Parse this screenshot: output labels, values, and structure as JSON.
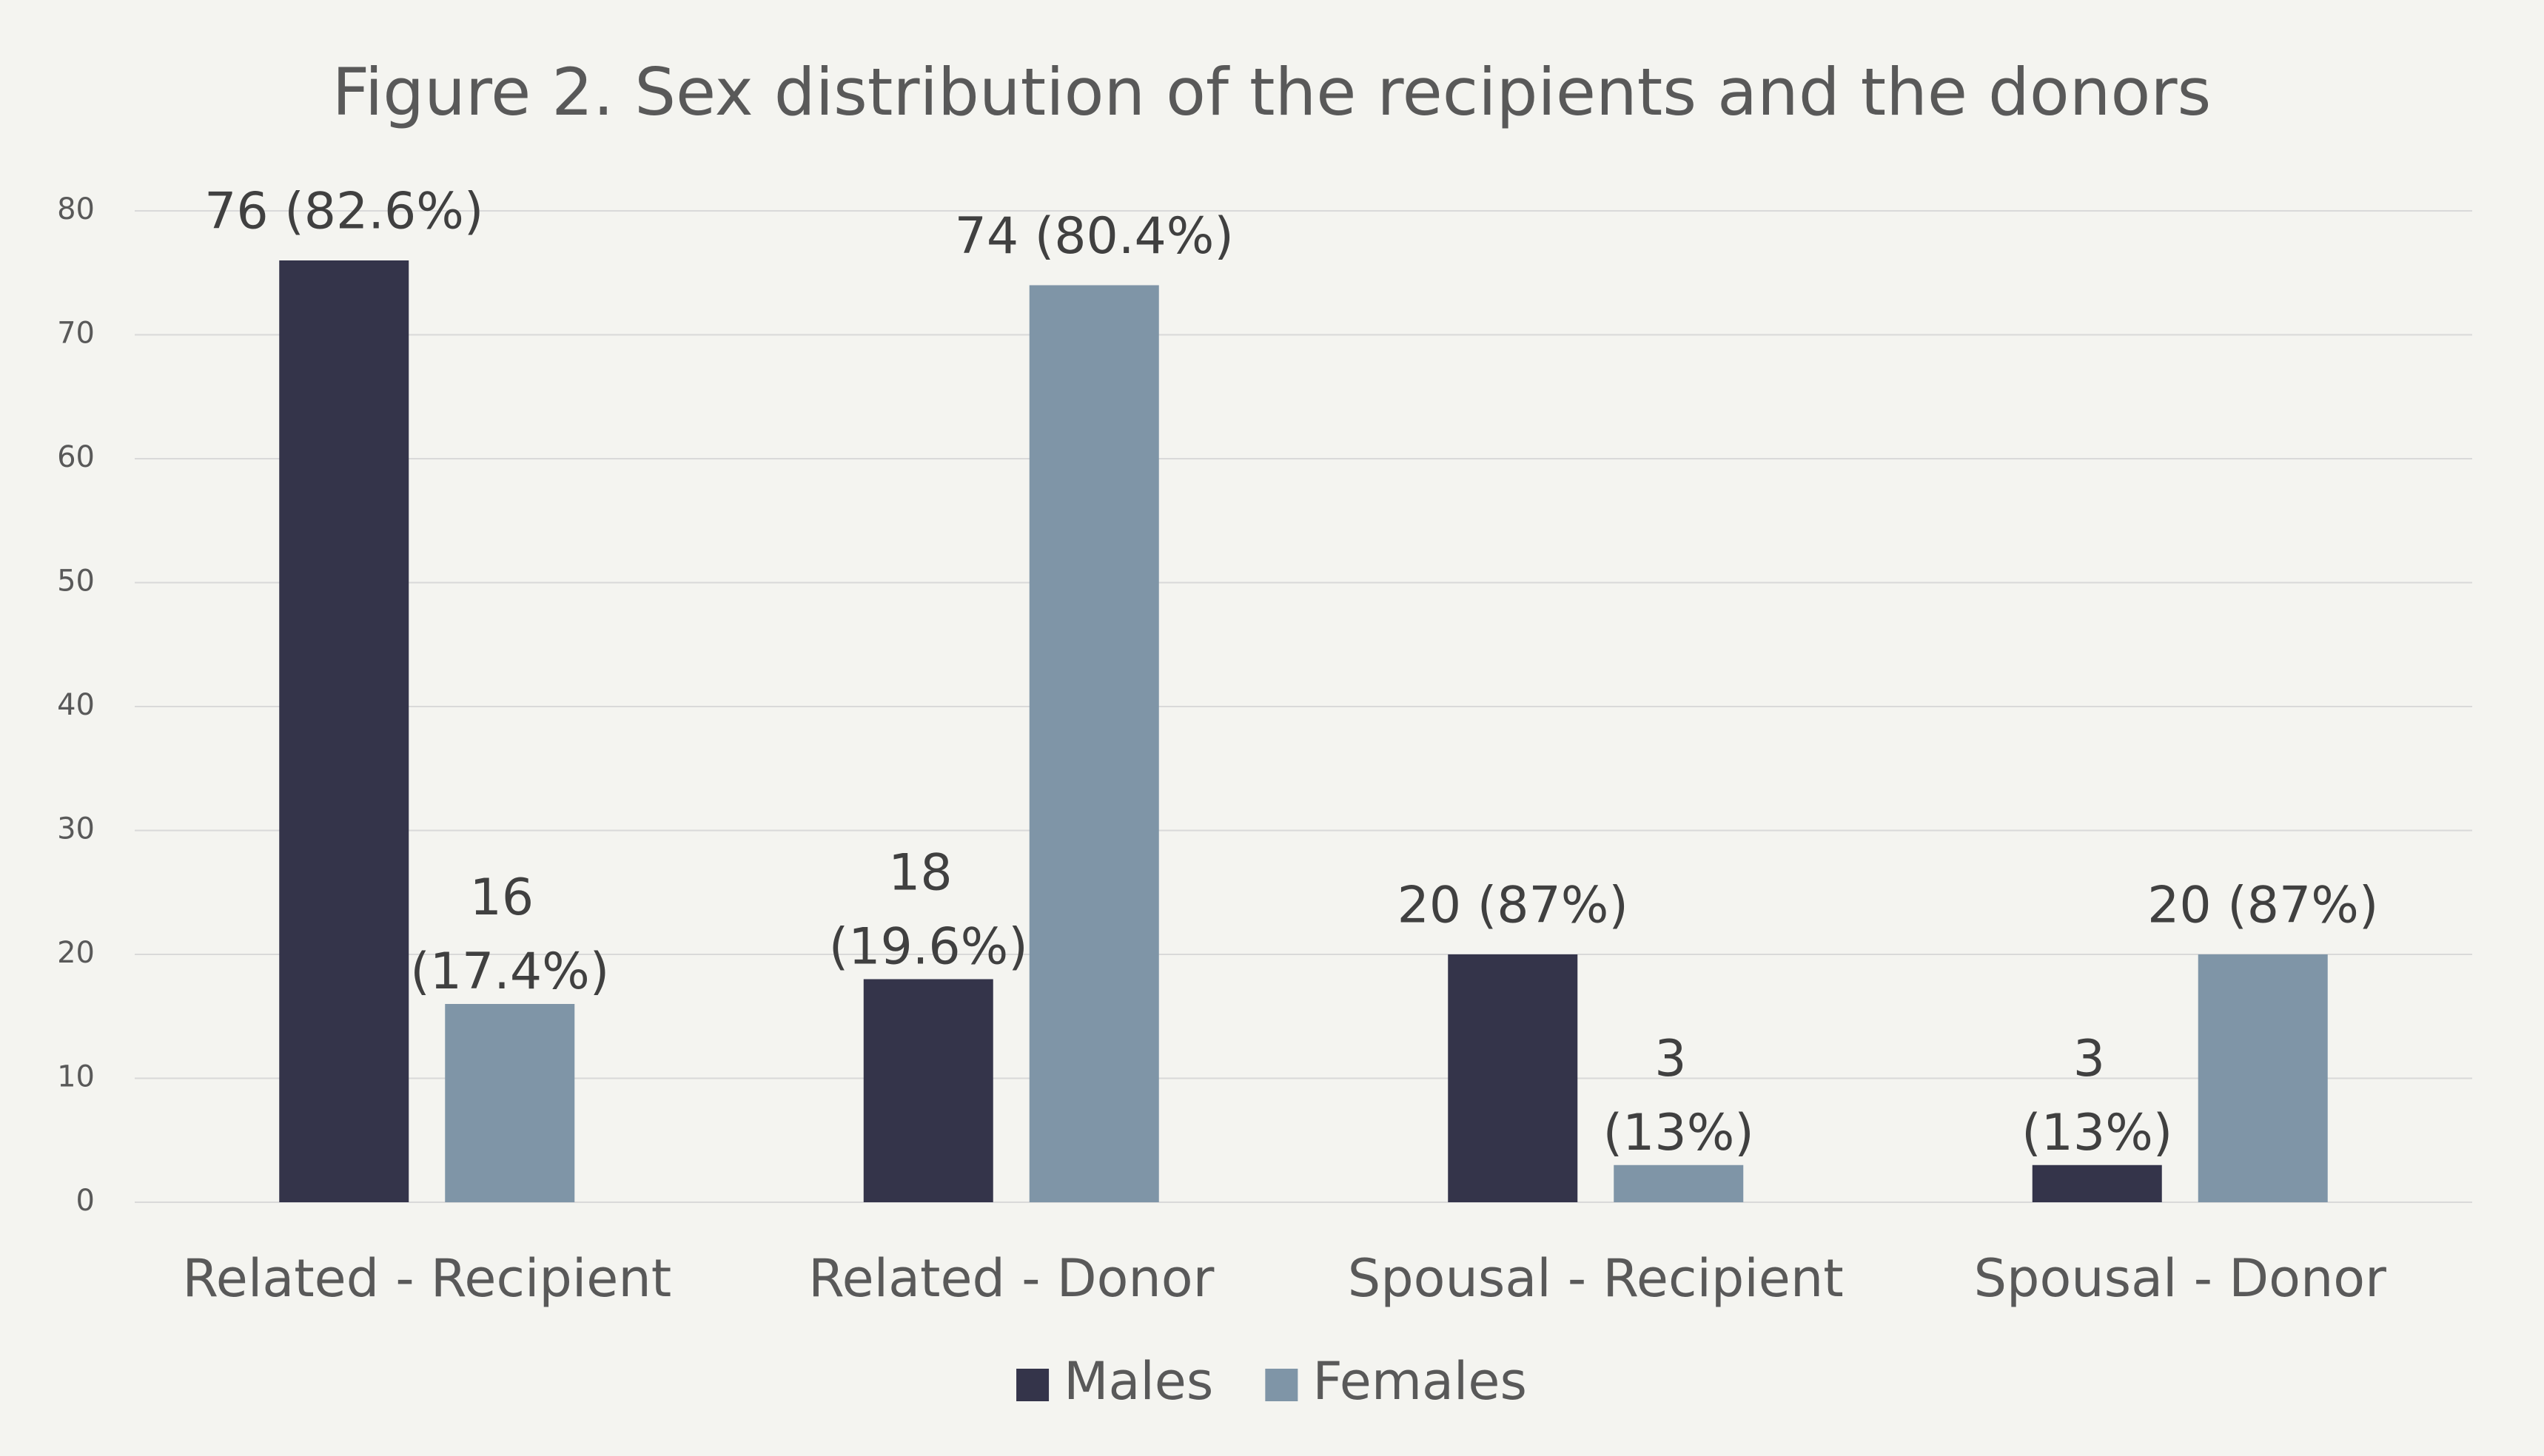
{
  "chart_data": {
    "type": "bar",
    "title": "Figure 2. Sex distribution of the recipients and the donors",
    "categories": [
      "Related - Recipient",
      "Related - Donor",
      "Spousal - Recipient",
      "Spousal - Donor"
    ],
    "series": [
      {
        "name": "Males",
        "color": "#34344a",
        "values": [
          76,
          18,
          20,
          3
        ],
        "value_labels": [
          "76 (82.6%)",
          "18 (19.6%)",
          "20 (87%)",
          "3 (13%)"
        ]
      },
      {
        "name": "Females",
        "color": "#7f95a7",
        "values": [
          16,
          74,
          3,
          20
        ],
        "value_labels": [
          "16 (17.4%)",
          "74 (80.4%)",
          "3 (13%)",
          "20 (87%)"
        ]
      }
    ],
    "ylim": [
      0,
      80
    ],
    "yticks": [
      0,
      10,
      20,
      30,
      40,
      50,
      60,
      70,
      80
    ],
    "grid": true,
    "legend": "bottom"
  }
}
